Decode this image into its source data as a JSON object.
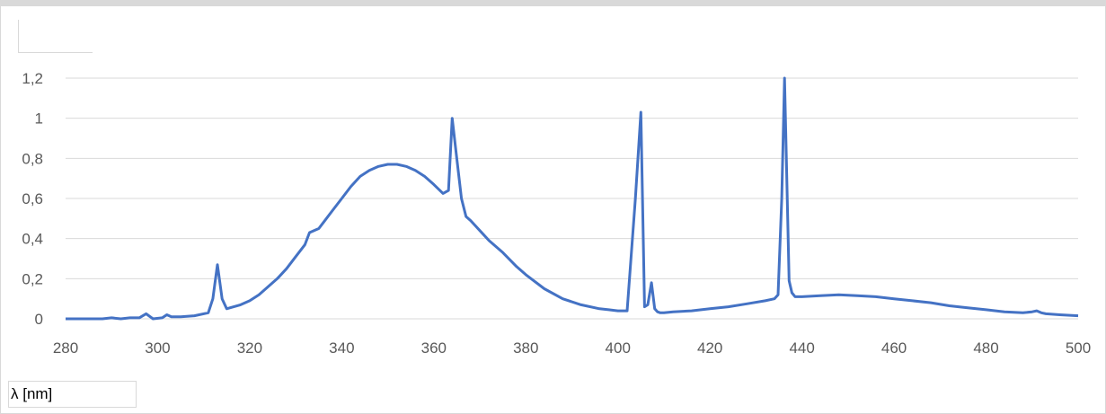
{
  "chart_data": {
    "type": "line",
    "title": "",
    "xlabel": "λ [nm]",
    "ylabel": "",
    "xlim": [
      280,
      500
    ],
    "ylim": [
      0,
      1.2
    ],
    "x_ticks": [
      "280",
      "300",
      "320",
      "340",
      "360",
      "380",
      "400",
      "420",
      "440",
      "460",
      "480",
      "500"
    ],
    "y_ticks": [
      "0",
      "0,2",
      "0,4",
      "0,6",
      "0,8",
      "1",
      "1,2"
    ],
    "grid": "horizontal",
    "legend": "none",
    "line_color": "#4472c4",
    "series": [
      {
        "x": [
          280,
          285,
          288,
          290,
          292,
          294,
          296,
          297.5,
          299,
          301,
          302,
          303,
          305,
          308,
          311,
          312,
          313,
          314,
          315,
          318,
          320,
          322,
          324,
          326,
          328,
          330,
          332,
          333,
          334,
          335,
          336,
          338,
          340,
          342,
          344,
          346,
          348,
          350,
          352,
          354,
          356,
          358,
          360,
          362,
          363.2,
          364,
          365,
          366,
          367,
          368,
          370,
          372,
          375,
          378,
          380,
          384,
          388,
          392,
          396,
          398,
          400,
          402,
          403.8,
          405,
          405.8,
          406.5,
          407.3,
          408,
          408.6,
          409.2,
          410,
          412,
          416,
          420,
          424,
          428,
          432,
          434,
          434.8,
          435.6,
          436.2,
          437.2,
          437.8,
          438.5,
          440,
          444,
          448,
          452,
          456,
          460,
          464,
          468,
          472,
          476,
          480,
          484,
          488,
          490,
          491,
          492,
          493,
          496,
          500
        ],
        "y": [
          0.0,
          0.0,
          0.0,
          0.005,
          0.0,
          0.005,
          0.005,
          0.025,
          0.0,
          0.005,
          0.02,
          0.01,
          0.01,
          0.015,
          0.03,
          0.1,
          0.27,
          0.1,
          0.05,
          0.07,
          0.09,
          0.12,
          0.16,
          0.2,
          0.25,
          0.31,
          0.37,
          0.43,
          0.44,
          0.45,
          0.48,
          0.54,
          0.6,
          0.66,
          0.71,
          0.74,
          0.76,
          0.77,
          0.77,
          0.76,
          0.74,
          0.71,
          0.67,
          0.625,
          0.64,
          1.0,
          0.8,
          0.6,
          0.51,
          0.49,
          0.44,
          0.39,
          0.33,
          0.26,
          0.22,
          0.15,
          0.1,
          0.07,
          0.05,
          0.045,
          0.04,
          0.04,
          0.6,
          1.03,
          0.06,
          0.07,
          0.18,
          0.05,
          0.035,
          0.03,
          0.03,
          0.035,
          0.04,
          0.05,
          0.06,
          0.075,
          0.09,
          0.1,
          0.12,
          0.6,
          1.2,
          0.19,
          0.13,
          0.11,
          0.11,
          0.115,
          0.12,
          0.115,
          0.11,
          0.1,
          0.09,
          0.08,
          0.065,
          0.055,
          0.045,
          0.035,
          0.03,
          0.035,
          0.04,
          0.03,
          0.025,
          0.02,
          0.015
        ]
      }
    ]
  }
}
